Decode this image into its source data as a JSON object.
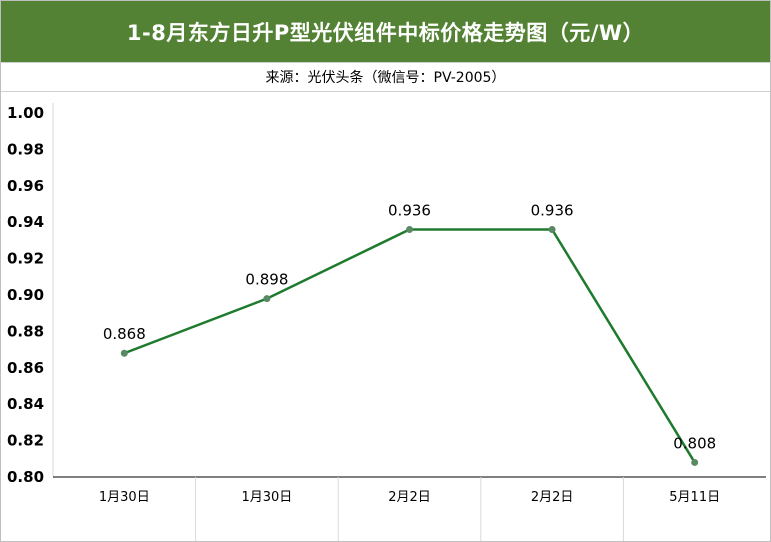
{
  "title": "1-8月东方日升P型光伏组件中标价格走势图（元/W）",
  "subtitle": "来源：光伏头条（微信号：PV-2005）",
  "colors": {
    "header": "#548235",
    "line": "#1e7b2e",
    "marker": "#5a8a63"
  },
  "chart_data": {
    "type": "line",
    "title": "1-8月东方日升P型光伏组件中标价格走势图（元/W）",
    "subtitle": "来源：光伏头条（微信号：PV-2005）",
    "categories": [
      "1月30日",
      "1月30日",
      "2月2日",
      "2月2日",
      "5月11日"
    ],
    "values": [
      0.868,
      0.898,
      0.936,
      0.936,
      0.808
    ],
    "data_labels": [
      "0.868",
      "0.898",
      "0.936",
      "0.936",
      "0.808"
    ],
    "ylim": [
      0.8,
      1.0
    ],
    "yticks": [
      "0.80",
      "0.82",
      "0.84",
      "0.86",
      "0.88",
      "0.90",
      "0.92",
      "0.94",
      "0.96",
      "0.98",
      "1.00"
    ],
    "grid": false,
    "legend": "none"
  }
}
